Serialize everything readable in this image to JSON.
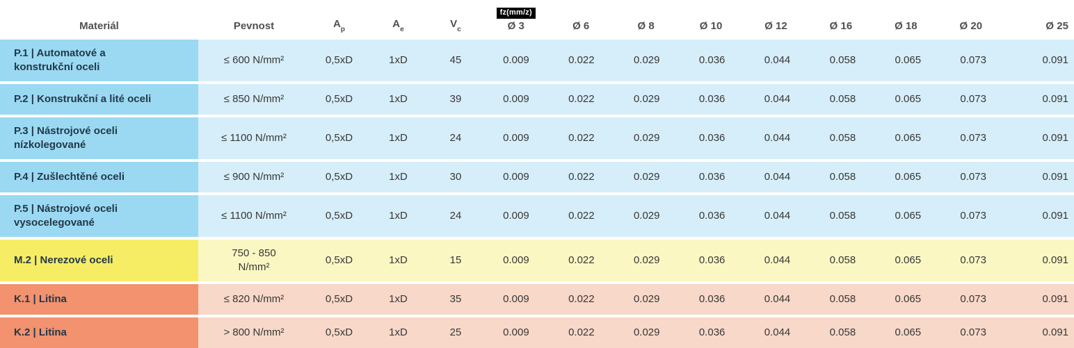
{
  "colors": {
    "p_label_bg": "#9ad9f1",
    "p_cell_bg": "#d6eef9",
    "m_label_bg": "#f6ed64",
    "m_cell_bg": "#fbf7c3",
    "k_label_bg": "#f2926e",
    "k_cell_bg": "#f8d8c9",
    "label_text": "#22384a",
    "badge_bg": "#000000",
    "badge_text": "#ffffff"
  },
  "table": {
    "headers": {
      "material": "Materiál",
      "pevnost": "Pevnost",
      "ap": {
        "base": "A",
        "sub": "p"
      },
      "ae": {
        "base": "A",
        "sub": "e"
      },
      "vc": {
        "base": "V",
        "sub": "c"
      },
      "fz_badge": "fz(mm/z)",
      "diameters": [
        "Ø 3",
        "Ø 6",
        "Ø 8",
        "Ø 10",
        "Ø 12",
        "Ø 16",
        "Ø 18",
        "Ø 20",
        "Ø 25"
      ]
    },
    "rows": [
      {
        "group": "P",
        "material": "P.1 | Automatové a\nkonstrukční oceli",
        "pevnost": "≤ 600 N/mm²",
        "ap": "0,5xD",
        "ae": "1xD",
        "vc": "45",
        "fz": [
          "0.009",
          "0.022",
          "0.029",
          "0.036",
          "0.044",
          "0.058",
          "0.065",
          "0.073",
          "0.091"
        ]
      },
      {
        "group": "P",
        "material": "P.2 | Konstrukční a lité oceli",
        "pevnost": "≤ 850 N/mm²",
        "ap": "0,5xD",
        "ae": "1xD",
        "vc": "39",
        "fz": [
          "0.009",
          "0.022",
          "0.029",
          "0.036",
          "0.044",
          "0.058",
          "0.065",
          "0.073",
          "0.091"
        ]
      },
      {
        "group": "P",
        "material": "P.3 | Nástrojové oceli\nnízkolegované",
        "pevnost": "≤ 1100 N/mm²",
        "ap": "0,5xD",
        "ae": "1xD",
        "vc": "24",
        "fz": [
          "0.009",
          "0.022",
          "0.029",
          "0.036",
          "0.044",
          "0.058",
          "0.065",
          "0.073",
          "0.091"
        ]
      },
      {
        "group": "P",
        "material": "P.4 | Zušlechtěné oceli",
        "pevnost": "≤ 900 N/mm²",
        "ap": "0,5xD",
        "ae": "1xD",
        "vc": "30",
        "fz": [
          "0.009",
          "0.022",
          "0.029",
          "0.036",
          "0.044",
          "0.058",
          "0.065",
          "0.073",
          "0.091"
        ]
      },
      {
        "group": "P",
        "material": "P.5 | Nástrojové oceli\nvysocelegované",
        "pevnost": "≤ 1100 N/mm²",
        "ap": "0,5xD",
        "ae": "1xD",
        "vc": "24",
        "fz": [
          "0.009",
          "0.022",
          "0.029",
          "0.036",
          "0.044",
          "0.058",
          "0.065",
          "0.073",
          "0.091"
        ]
      },
      {
        "group": "M",
        "material": "M.2 | Nerezové oceli",
        "pevnost": "750 - 850\nN/mm²",
        "ap": "0,5xD",
        "ae": "1xD",
        "vc": "15",
        "fz": [
          "0.009",
          "0.022",
          "0.029",
          "0.036",
          "0.044",
          "0.058",
          "0.065",
          "0.073",
          "0.091"
        ]
      },
      {
        "group": "K",
        "material": "K.1 | Litina",
        "pevnost": "≤ 820 N/mm²",
        "ap": "0,5xD",
        "ae": "1xD",
        "vc": "35",
        "fz": [
          "0.009",
          "0.022",
          "0.029",
          "0.036",
          "0.044",
          "0.058",
          "0.065",
          "0.073",
          "0.091"
        ]
      },
      {
        "group": "K",
        "material": "K.2 | Litina",
        "pevnost": "> 800 N/mm²",
        "ap": "0,5xD",
        "ae": "1xD",
        "vc": "25",
        "fz": [
          "0.009",
          "0.022",
          "0.029",
          "0.036",
          "0.044",
          "0.058",
          "0.065",
          "0.073",
          "0.091"
        ]
      }
    ]
  }
}
